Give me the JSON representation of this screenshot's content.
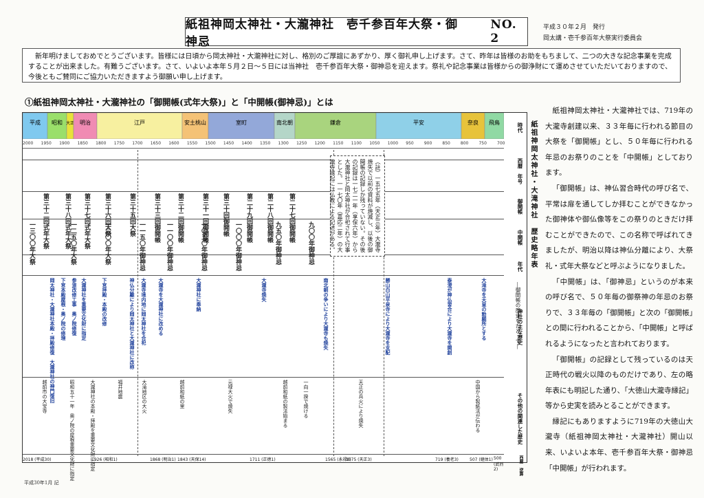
{
  "header": {
    "title": "紙祖神岡太神社・大瀧神社　壱千参百年大祭・御神忌",
    "issue_no": "NO. 2",
    "issue_date": "平成３０年２月　発行",
    "publisher": "岡太講・壱千参百年大祭実行委員会"
  },
  "intro": "新年明けましておめでとうございます。皆様には日頃から岡太神社・大瀧神社に対し、格別のご厚誼にあずかり、厚く御礼申し上げます。さて、昨年は皆様のお助をもちまして、二つの大きな記念事業を完成することが出来ました。有難うございます。さて、いよいよ本年５月２日～５日には当神社　壱千参百年大祭・御神忌を迎えます。祭礼や記念事業は皆様からの御浄財にて運めさせていただいておりますので、今後ともご賛同にご協力いただきますよう御願い申し上げます。",
  "section_title": "①紙祖神岡太神社・大瀧神社の「御開帳(式年大祭)」と「中開帳(御神忌)」とは",
  "chart": {
    "side_title": "紙祖神岡太神社・大滝神社　歴史略年表",
    "side_subtitle": "―御開帳の歴史をたどって―",
    "row_labels": [
      "時代",
      "西暦　年号",
      "御開帳",
      "中開帳",
      "年代",
      "神社の主な歴史",
      "その他の関連した歴史",
      "西暦　逆算"
    ],
    "eras": [
      {
        "label": "平成",
        "color": "#7fc9ef"
      },
      {
        "label": "昭和",
        "color": "#9adf6a"
      },
      {
        "label": "大正",
        "color": "#e8e23a"
      },
      {
        "label": "明治",
        "color": "#f08bb3"
      },
      {
        "label": "江戸",
        "color": "#f7f0a0"
      },
      {
        "label": "安土桃山",
        "color": "#f4c276"
      },
      {
        "label": "室町",
        "color": "#93a8d9"
      },
      {
        "label": "南北朝",
        "color": "#b4d6c8"
      },
      {
        "label": "鎌倉",
        "color": "#a9d47e"
      },
      {
        "label": "平安",
        "color": "#8fd0e8"
      },
      {
        "label": "奈良",
        "color": "#e7c33b"
      },
      {
        "label": "飛鳥",
        "color": "#90d9a4"
      }
    ],
    "ticks": [
      "2000",
      "1950",
      "1900",
      "1850",
      "1800",
      "1750",
      "1700",
      "1650",
      "1600",
      "1550",
      "1500",
      "1450",
      "1400",
      "1350",
      "1300",
      "1250",
      "1200",
      "1150",
      "1100",
      "1050",
      "1000",
      "950",
      "900",
      "850",
      "800",
      "750",
      "700"
    ],
    "gokaicho": [
      "第三十二回式年大祭",
      "第三十八回式年大祭",
      "第三十七回式年大祭",
      "第三十六回大祭",
      "第三十五回大祭",
      "第三十三回御開帳",
      "第三十二回御開帳",
      "第三十一回御開帳",
      "第三十回御開帳",
      "第二十九回御開帳",
      "第二十八回御開帳",
      "第二十七回御開帳"
    ],
    "chukaicho": [
      "一三〇〇年大祭",
      "一二五〇年大祭",
      "一二〇〇年大祭",
      "一一五〇年御神忌",
      "一一〇〇年御神忌",
      "一〇五〇年御神忌",
      "一〇〇〇年御神忌",
      "九五〇年御神忌",
      "九〇〇年御神忌"
    ],
    "note": "（註）一五七五年（天正三年）大瀧寺焼失で以前の資料が焼滅し、以後の御開帳の記録しか残っていない。その後の記録は一七二一年（享保六年）から大瀧神社と岡太神社が合祀されて行事とした。一一七〇年（嘉応二年）の大瀧寺縁起には仏教による記述がある。",
    "history": [
      "岡太神社・大瀧神社本殿・拝殿修復　大瀧神社の神門復旧",
      "下宮本殿屋根・奥ノ院の修理",
      "参道改修工事　奥ノ院修復",
      "大瀧神社を重要文化財に指定",
      "下宮拝殿・本殿の改修",
      "神仏分離により岡太神社と大瀧神社に改称",
      "大瀧寺境内地に岡太神社を合祀",
      "大瀧寺を大瀧神社に改める",
      "大瀧神社に奉納",
      "大瀧寺焼失",
      "南北朝の争いにより大瀧寺も焼失",
      "勝山白山平泉寺により大瀧寺を支配",
      "泰澄が神仏習合により大瀧寺を開創",
      "大滝寺を天皇の勅願所とする"
    ],
    "other_history": [
      "越前市の大宝寺",
      "昭和五十一年　奥ノ院の屋根重要文化財に指定",
      "大瀧神社の本殿・拝殿を重要文化財に指定",
      "福井地震",
      "大滝地区の大火",
      "越前和紙の里",
      "元禄大火で焼失",
      "越前和紙の製法始まる",
      "一向一揆で焼ける",
      "天正の兵火により焼失",
      "中国から製紙法が伝わる"
    ],
    "bottom": [
      "2018 (平成30)",
      "1926 (昭和1)",
      "1868 (明治1)",
      "1843 (天保14)",
      "1711 (正徳1)",
      "1565 (永禄8)",
      "1575 (天正3)",
      "719 (養老3)",
      "507 (継体1)",
      "500 (武烈2)"
    ],
    "bottom_label": "西暦 逆算",
    "footnote": "平成30年1月 記"
  },
  "body": {
    "p1_text": "紙祖神岡太神社・大瀧神社では、719年の大瀧寺創建以来、３３年毎に行われる節目の大祭を「御開帳」とし、５０年毎に行われる年忌のお祭りのことを「中開帳」としております。",
    "p2_text": "「御開帳」は、神仏習合時代の呼び名で、平常は扉を通してしか拝むことができなかった御神体や御仏像等をこの祭りのときだけ拝むことができたので、この名称で呼ばれてきましたが、明治以降は神仏分離により、大祭礼・式年大祭などと呼ぶようになりました。",
    "p3_text": "「中開帳」は、「御神忌」というのが本来の呼び名で、５０年毎の御祭神の年忌のお祭りで、３３年毎の「御開帳」と次の「御開帳」との間に行われることから、「中開帳」と呼ばれるようになったと言われております。",
    "p4_text": "「御開帳」の記録として残っているのは天正時代の戦火以降のものだけであり、左の略年表にも明記した通り、「大徳山大瀧寺縁記」等から史実を読みとることができます。",
    "p5_text": "縁記にもありますように719年の大徳山大瀧寺（紙祖神岡太神社・大瀧神社）開山以来、いよいよ本年、壱千参百年大祭・御神忌「中開帳」が行われます。"
  }
}
